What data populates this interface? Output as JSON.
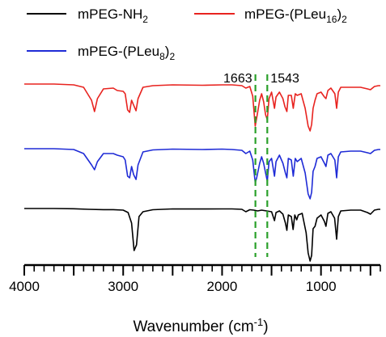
{
  "chart_data": {
    "type": "line",
    "title": "",
    "xlabel": "Wavenumber (cm",
    "xlabel_sup": "-1",
    "xlabel_close": ")",
    "ylabel": "",
    "xlim": [
      4000,
      400
    ],
    "x_reversed": true,
    "x_ticks": [
      4000,
      3000,
      2000,
      1000
    ],
    "x_tick_labels": [
      "4000",
      "3000",
      "2000",
      "1000"
    ],
    "grid": false,
    "legend_position": "top",
    "series": [
      {
        "name": "mPEG-NH",
        "name_sub": "2",
        "name_tail": "",
        "color": "#000000",
        "offset": 0,
        "points": [
          [
            4000,
            0.0
          ],
          [
            3700,
            0.0
          ],
          [
            3500,
            -0.3
          ],
          [
            3350,
            -1.0
          ],
          [
            3200,
            -1.4
          ],
          [
            3100,
            -1.4
          ],
          [
            3000,
            -2.0
          ],
          [
            2950,
            -5
          ],
          [
            2915,
            -18
          ],
          [
            2890,
            -52
          ],
          [
            2865,
            -45
          ],
          [
            2840,
            -10
          ],
          [
            2800,
            -4
          ],
          [
            2700,
            -1.5
          ],
          [
            2500,
            -0.5
          ],
          [
            2200,
            -0.6
          ],
          [
            2000,
            -0.5
          ],
          [
            1900,
            -0.5
          ],
          [
            1800,
            -1
          ],
          [
            1760,
            -4
          ],
          [
            1720,
            -1.5
          ],
          [
            1680,
            -2
          ],
          [
            1640,
            -3
          ],
          [
            1600,
            -2
          ],
          [
            1500,
            -4
          ],
          [
            1470,
            -15
          ],
          [
            1455,
            -5
          ],
          [
            1420,
            -3
          ],
          [
            1385,
            -7
          ],
          [
            1360,
            -18
          ],
          [
            1345,
            -27
          ],
          [
            1330,
            -8
          ],
          [
            1300,
            -10
          ],
          [
            1282,
            -26
          ],
          [
            1265,
            -8
          ],
          [
            1245,
            -14
          ],
          [
            1230,
            -8
          ],
          [
            1190,
            -6
          ],
          [
            1150,
            -30
          ],
          [
            1130,
            -55
          ],
          [
            1110,
            -65
          ],
          [
            1095,
            -58
          ],
          [
            1080,
            -25
          ],
          [
            1060,
            -22
          ],
          [
            1040,
            -12
          ],
          [
            1000,
            -8
          ],
          [
            965,
            -16
          ],
          [
            950,
            -22
          ],
          [
            930,
            -6
          ],
          [
            900,
            -4
          ],
          [
            862,
            -12
          ],
          [
            842,
            -38
          ],
          [
            825,
            -10
          ],
          [
            800,
            -3
          ],
          [
            700,
            -2
          ],
          [
            600,
            -2
          ],
          [
            530,
            -5
          ],
          [
            500,
            -7
          ],
          [
            460,
            -2
          ],
          [
            420,
            -1
          ],
          [
            400,
            -1
          ]
        ]
      },
      {
        "name": "mPEG-(PLeu",
        "name_sub": "16",
        "name_tail": ")2",
        "color": "#e8231f",
        "offset": 100,
        "points": [
          [
            4000,
            0.0
          ],
          [
            3700,
            0.0
          ],
          [
            3500,
            -1
          ],
          [
            3400,
            -4
          ],
          [
            3320,
            -20
          ],
          [
            3290,
            -34
          ],
          [
            3260,
            -18
          ],
          [
            3200,
            -6
          ],
          [
            3100,
            -5
          ],
          [
            3060,
            -8
          ],
          [
            3000,
            -9
          ],
          [
            2980,
            -12
          ],
          [
            2955,
            -32
          ],
          [
            2935,
            -35
          ],
          [
            2915,
            -20
          ],
          [
            2895,
            -26
          ],
          [
            2870,
            -33
          ],
          [
            2850,
            -18
          ],
          [
            2800,
            -4
          ],
          [
            2700,
            -2
          ],
          [
            2500,
            -1
          ],
          [
            2200,
            -1.5
          ],
          [
            2000,
            -1
          ],
          [
            1900,
            -1
          ],
          [
            1800,
            -2
          ],
          [
            1760,
            -5
          ],
          [
            1720,
            -3
          ],
          [
            1690,
            -15
          ],
          [
            1665,
            -52
          ],
          [
            1650,
            -42
          ],
          [
            1620,
            -20
          ],
          [
            1600,
            -12
          ],
          [
            1580,
            -22
          ],
          [
            1560,
            -38
          ],
          [
            1543,
            -44
          ],
          [
            1525,
            -18
          ],
          [
            1500,
            -10
          ],
          [
            1470,
            -30
          ],
          [
            1455,
            -16
          ],
          [
            1420,
            -10
          ],
          [
            1385,
            -18
          ],
          [
            1365,
            -28
          ],
          [
            1345,
            -34
          ],
          [
            1330,
            -14
          ],
          [
            1300,
            -14
          ],
          [
            1280,
            -30
          ],
          [
            1260,
            -12
          ],
          [
            1240,
            -14
          ],
          [
            1200,
            -12
          ],
          [
            1160,
            -30
          ],
          [
            1130,
            -52
          ],
          [
            1110,
            -58
          ],
          [
            1095,
            -50
          ],
          [
            1080,
            -30
          ],
          [
            1060,
            -20
          ],
          [
            1040,
            -12
          ],
          [
            1000,
            -10
          ],
          [
            965,
            -16
          ],
          [
            950,
            -18
          ],
          [
            930,
            -8
          ],
          [
            900,
            -5
          ],
          [
            860,
            -12
          ],
          [
            842,
            -30
          ],
          [
            825,
            -10
          ],
          [
            800,
            -4
          ],
          [
            700,
            -4
          ],
          [
            600,
            -4
          ],
          [
            530,
            -6
          ],
          [
            500,
            -7
          ],
          [
            460,
            -3
          ],
          [
            420,
            -2
          ],
          [
            400,
            -2
          ]
        ]
      },
      {
        "name": "mPEG-(PLeu",
        "name_sub": "8",
        "name_tail": ")2",
        "color": "#1f2bd6",
        "offset": 50,
        "points": [
          [
            4000,
            0.0
          ],
          [
            3700,
            0.0
          ],
          [
            3500,
            -1
          ],
          [
            3400,
            -6
          ],
          [
            3320,
            -20
          ],
          [
            3290,
            -26
          ],
          [
            3260,
            -16
          ],
          [
            3200,
            -6
          ],
          [
            3100,
            -6
          ],
          [
            3060,
            -8
          ],
          [
            3000,
            -10
          ],
          [
            2980,
            -14
          ],
          [
            2955,
            -34
          ],
          [
            2935,
            -36
          ],
          [
            2915,
            -22
          ],
          [
            2895,
            -32
          ],
          [
            2870,
            -38
          ],
          [
            2850,
            -20
          ],
          [
            2800,
            -4
          ],
          [
            2700,
            -1.5
          ],
          [
            2500,
            -0.5
          ],
          [
            2200,
            -1
          ],
          [
            2000,
            -0.5
          ],
          [
            1900,
            -1
          ],
          [
            1800,
            -2
          ],
          [
            1760,
            -6
          ],
          [
            1720,
            -3
          ],
          [
            1690,
            -14
          ],
          [
            1665,
            -42
          ],
          [
            1650,
            -36
          ],
          [
            1620,
            -18
          ],
          [
            1600,
            -10
          ],
          [
            1580,
            -18
          ],
          [
            1560,
            -30
          ],
          [
            1543,
            -40
          ],
          [
            1525,
            -16
          ],
          [
            1500,
            -12
          ],
          [
            1470,
            -34
          ],
          [
            1455,
            -16
          ],
          [
            1420,
            -8
          ],
          [
            1385,
            -18
          ],
          [
            1360,
            -30
          ],
          [
            1345,
            -36
          ],
          [
            1330,
            -12
          ],
          [
            1300,
            -14
          ],
          [
            1280,
            -34
          ],
          [
            1260,
            -12
          ],
          [
            1240,
            -16
          ],
          [
            1200,
            -12
          ],
          [
            1160,
            -30
          ],
          [
            1130,
            -56
          ],
          [
            1110,
            -62
          ],
          [
            1095,
            -54
          ],
          [
            1080,
            -28
          ],
          [
            1060,
            -22
          ],
          [
            1040,
            -12
          ],
          [
            1000,
            -10
          ],
          [
            965,
            -18
          ],
          [
            950,
            -22
          ],
          [
            930,
            -8
          ],
          [
            900,
            -6
          ],
          [
            860,
            -14
          ],
          [
            842,
            -36
          ],
          [
            825,
            -10
          ],
          [
            800,
            -4
          ],
          [
            700,
            -3
          ],
          [
            600,
            -3
          ],
          [
            530,
            -5
          ],
          [
            500,
            -6
          ],
          [
            460,
            -2
          ],
          [
            420,
            -1
          ],
          [
            400,
            -1
          ]
        ]
      }
    ],
    "annotations": [
      {
        "text": "1663",
        "x": 1663,
        "color": "#2aa02a",
        "style": "dashed"
      },
      {
        "text": "1543",
        "x": 1543,
        "color": "#2aa02a",
        "style": "dashed"
      }
    ]
  }
}
